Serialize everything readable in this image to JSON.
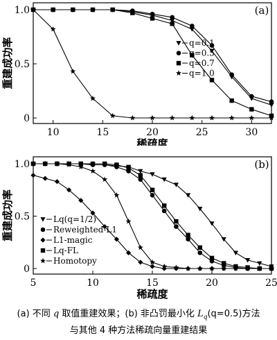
{
  "chart_data": [
    {
      "type": "line",
      "panel_label": "(a)",
      "xlabel": "稀疏度",
      "ylabel": "重建成功率",
      "xlim": [
        8,
        32
      ],
      "ylim": [
        0,
        1
      ],
      "xticks": [
        10,
        15,
        20,
        25,
        30
      ],
      "yticks": [
        0,
        0.5,
        1.0
      ],
      "ytick_labels": [
        "0",
        "0.5",
        "1.0"
      ],
      "legend_position": "center-right",
      "series": [
        {
          "name": "q=0.1",
          "marker": "triangle-down",
          "x": [
            8,
            10,
            12,
            14,
            16,
            18,
            20,
            22,
            24,
            26,
            28,
            30,
            32
          ],
          "y": [
            1.0,
            1.0,
            1.0,
            1.0,
            1.0,
            0.98,
            0.95,
            0.9,
            0.82,
            0.62,
            0.38,
            0.18,
            0.12
          ]
        },
        {
          "name": "q=0.5",
          "marker": "circle",
          "x": [
            8,
            10,
            12,
            14,
            16,
            18,
            20,
            22,
            24,
            26,
            28,
            30,
            32
          ],
          "y": [
            1.0,
            1.0,
            1.0,
            1.0,
            1.0,
            0.99,
            0.96,
            0.93,
            0.85,
            0.67,
            0.4,
            0.2,
            0.15
          ]
        },
        {
          "name": "q=0.7",
          "marker": "square",
          "x": [
            8,
            10,
            12,
            14,
            16,
            18,
            20,
            22,
            24,
            26,
            28,
            30,
            32
          ],
          "y": [
            1.0,
            1.0,
            1.0,
            1.0,
            1.0,
            0.97,
            0.92,
            0.87,
            0.58,
            0.35,
            0.16,
            0.08,
            0.02
          ]
        },
        {
          "name": "q=1.0",
          "marker": "star",
          "x": [
            8,
            10,
            12,
            14,
            16,
            18,
            20,
            22,
            24,
            26,
            28,
            30,
            32
          ],
          "y": [
            1.0,
            0.82,
            0.43,
            0.18,
            0.02,
            0.0,
            0.0,
            0.0,
            0.0,
            0.0,
            0.0,
            0.0,
            0.0
          ]
        }
      ]
    },
    {
      "type": "line",
      "panel_label": "(b)",
      "xlabel": "稀疏度",
      "ylabel": "重建成功率",
      "xlim": [
        5,
        25
      ],
      "ylim": [
        0,
        1
      ],
      "xticks": [
        5,
        10,
        15,
        20,
        25
      ],
      "yticks": [
        0,
        0.5,
        1.0
      ],
      "ytick_labels": [
        "0",
        "0.5",
        "1.0"
      ],
      "legend_position": "lower-left",
      "series": [
        {
          "name": "Lq(q=1/2)",
          "marker": "triangle-down",
          "x": [
            5,
            6,
            7,
            8,
            9,
            10,
            11,
            12,
            13,
            14,
            15,
            16,
            17,
            18,
            19,
            20,
            21,
            22,
            23,
            24,
            25
          ],
          "y": [
            1.0,
            1.0,
            1.0,
            1.0,
            1.0,
            0.99,
            0.99,
            0.98,
            0.97,
            0.93,
            0.9,
            0.85,
            0.8,
            0.7,
            0.57,
            0.43,
            0.28,
            0.15,
            0.08,
            0.05,
            0.02
          ]
        },
        {
          "name": "Reweighted-L1",
          "marker": "circle",
          "x": [
            5,
            6,
            7,
            8,
            9,
            10,
            11,
            12,
            13,
            14,
            15,
            16,
            17,
            18,
            19,
            20,
            21,
            22,
            23,
            24,
            25
          ],
          "y": [
            1.0,
            1.0,
            1.0,
            1.0,
            1.0,
            0.99,
            0.99,
            0.97,
            0.93,
            0.85,
            0.7,
            0.55,
            0.4,
            0.28,
            0.15,
            0.07,
            0.03,
            0.01,
            0.0,
            0.0,
            0.0
          ]
        },
        {
          "name": "L1-magic",
          "marker": "diamond",
          "x": [
            5,
            6,
            7,
            8,
            9,
            10,
            11,
            12,
            13,
            14,
            15,
            16,
            17,
            18,
            19,
            20,
            21,
            22,
            23,
            24,
            25
          ],
          "y": [
            0.89,
            0.86,
            0.83,
            0.75,
            0.65,
            0.53,
            0.4,
            0.28,
            0.15,
            0.06,
            0.02,
            0.0,
            0.0,
            0.0,
            0.0,
            0.0,
            0.0,
            0.0,
            0.0,
            0.0,
            0.0
          ]
        },
        {
          "name": "Lq-FL",
          "marker": "square",
          "x": [
            5,
            6,
            7,
            8,
            9,
            10,
            11,
            12,
            13,
            14,
            15,
            16,
            17,
            18,
            19,
            20,
            21,
            22,
            23,
            24,
            25
          ],
          "y": [
            1.0,
            1.0,
            1.0,
            1.0,
            1.0,
            1.0,
            1.0,
            0.99,
            0.96,
            0.89,
            0.75,
            0.6,
            0.45,
            0.32,
            0.2,
            0.1,
            0.05,
            0.02,
            0.01,
            0.0,
            0.0
          ]
        },
        {
          "name": "Homotopy",
          "marker": "star",
          "x": [
            5,
            6,
            7,
            8,
            9,
            10,
            11,
            12,
            13,
            14,
            15,
            16,
            17,
            18,
            19,
            20,
            21,
            22,
            23,
            24,
            25
          ],
          "y": [
            1.0,
            1.0,
            1.0,
            0.99,
            0.97,
            0.93,
            0.85,
            0.7,
            0.45,
            0.2,
            0.06,
            0.02,
            0.01,
            0.0,
            0.0,
            0.0,
            0.0,
            0.0,
            0.0,
            0.0,
            0.0
          ]
        }
      ]
    }
  ],
  "caption": {
    "line1_a": "(a) 不同",
    "line1_q": "q",
    "line1_b": "取值重建效果；(b) 非凸罚最小化",
    "line1_lq": "L",
    "line1_sub": "q",
    "line1_c": "(q=0.5)方法",
    "line2": "与其他 4 种方法稀疏向量重建结果"
  }
}
